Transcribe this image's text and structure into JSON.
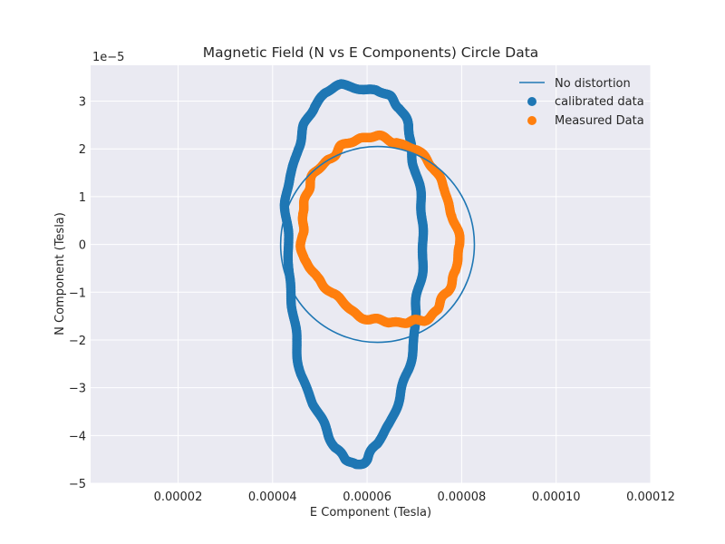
{
  "chart_data": {
    "type": "scatter",
    "title": "Magnetic Field (N vs E Components) Circle Data",
    "xlabel": "E Component (Tesla)",
    "ylabel": "N Component (Tesla)",
    "y_offset_text": "1e−5",
    "xlim": [
      1.5e-06,
      0.00012
    ],
    "ylim": [
      -5,
      3.75
    ],
    "x_ticks": [
      2e-05,
      4e-05,
      6e-05,
      8e-05,
      0.0001,
      0.00012
    ],
    "x_tick_labels": [
      "0.00002",
      "0.00004",
      "0.00006",
      "0.00008",
      "0.00010",
      "0.00012"
    ],
    "y_ticks": [
      -5,
      -4,
      -3,
      -2,
      -1,
      0,
      1,
      2,
      3
    ],
    "y_tick_labels": [
      "−5",
      "−4",
      "−3",
      "−2",
      "−1",
      "0",
      "1",
      "2",
      "3"
    ],
    "grid": true,
    "legend_position": "top-right",
    "series": [
      {
        "name": "No distortion",
        "kind": "line",
        "color": "#1f77b4",
        "center": [
          6.22e-05,
          0.0
        ],
        "radius_x": 2.05e-05,
        "radius_y": 2.05
      },
      {
        "name": "calibrated data",
        "kind": "scatter",
        "color": "#1f77b4",
        "points": [
          [
            5.9e-05,
            3.3
          ],
          [
            6.2e-05,
            3.25
          ],
          [
            6.48e-05,
            3.1
          ],
          [
            6.68e-05,
            2.85
          ],
          [
            6.83e-05,
            2.5
          ],
          [
            6.95e-05,
            2.1
          ],
          [
            7.05e-05,
            1.6
          ],
          [
            7.12e-05,
            1.0
          ],
          [
            7.16e-05,
            0.4
          ],
          [
            7.16e-05,
            -0.2
          ],
          [
            7.13e-05,
            -0.8
          ],
          [
            7.08e-05,
            -1.4
          ],
          [
            6.98e-05,
            -2.0
          ],
          [
            6.85e-05,
            -2.6
          ],
          [
            6.68e-05,
            -3.2
          ],
          [
            6.48e-05,
            -3.75
          ],
          [
            6.25e-05,
            -4.2
          ],
          [
            6e-05,
            -4.5
          ],
          [
            5.78e-05,
            -4.58
          ],
          [
            5.55e-05,
            -4.5
          ],
          [
            5.32e-05,
            -4.25
          ],
          [
            5.08e-05,
            -3.85
          ],
          [
            4.85e-05,
            -3.35
          ],
          [
            4.65e-05,
            -2.7
          ],
          [
            4.5e-05,
            -2.0
          ],
          [
            4.4e-05,
            -1.3
          ],
          [
            4.33e-05,
            -0.6
          ],
          [
            4.3e-05,
            0.1
          ],
          [
            4.32e-05,
            0.8
          ],
          [
            4.38e-05,
            1.4
          ],
          [
            4.5e-05,
            2.0
          ],
          [
            4.66e-05,
            2.5
          ],
          [
            4.87e-05,
            2.9
          ],
          [
            5.12e-05,
            3.15
          ],
          [
            5.45e-05,
            3.3
          ]
        ]
      },
      {
        "name": "Measured Data",
        "kind": "scatter",
        "color": "#ff7f0e",
        "points": [
          [
            6.25e-05,
            2.25
          ],
          [
            6.65e-05,
            2.18
          ],
          [
            7.05e-05,
            1.95
          ],
          [
            7.4e-05,
            1.6
          ],
          [
            7.65e-05,
            1.15
          ],
          [
            7.85e-05,
            0.6
          ],
          [
            7.92e-05,
            0.0
          ],
          [
            7.88e-05,
            -0.55
          ],
          [
            7.72e-05,
            -1.0
          ],
          [
            7.5e-05,
            -1.35
          ],
          [
            7.2e-05,
            -1.55
          ],
          [
            6.85e-05,
            -1.65
          ],
          [
            6.45e-05,
            -1.65
          ],
          [
            6.05e-05,
            -1.55
          ],
          [
            5.65e-05,
            -1.35
          ],
          [
            5.25e-05,
            -1.05
          ],
          [
            4.92e-05,
            -0.7
          ],
          [
            4.7e-05,
            -0.3
          ],
          [
            4.6e-05,
            0.2
          ],
          [
            4.62e-05,
            0.65
          ],
          [
            4.72e-05,
            1.05
          ],
          [
            4.9e-05,
            1.45
          ],
          [
            5.15e-05,
            1.8
          ],
          [
            5.45e-05,
            2.05
          ],
          [
            5.85e-05,
            2.2
          ]
        ]
      }
    ]
  }
}
